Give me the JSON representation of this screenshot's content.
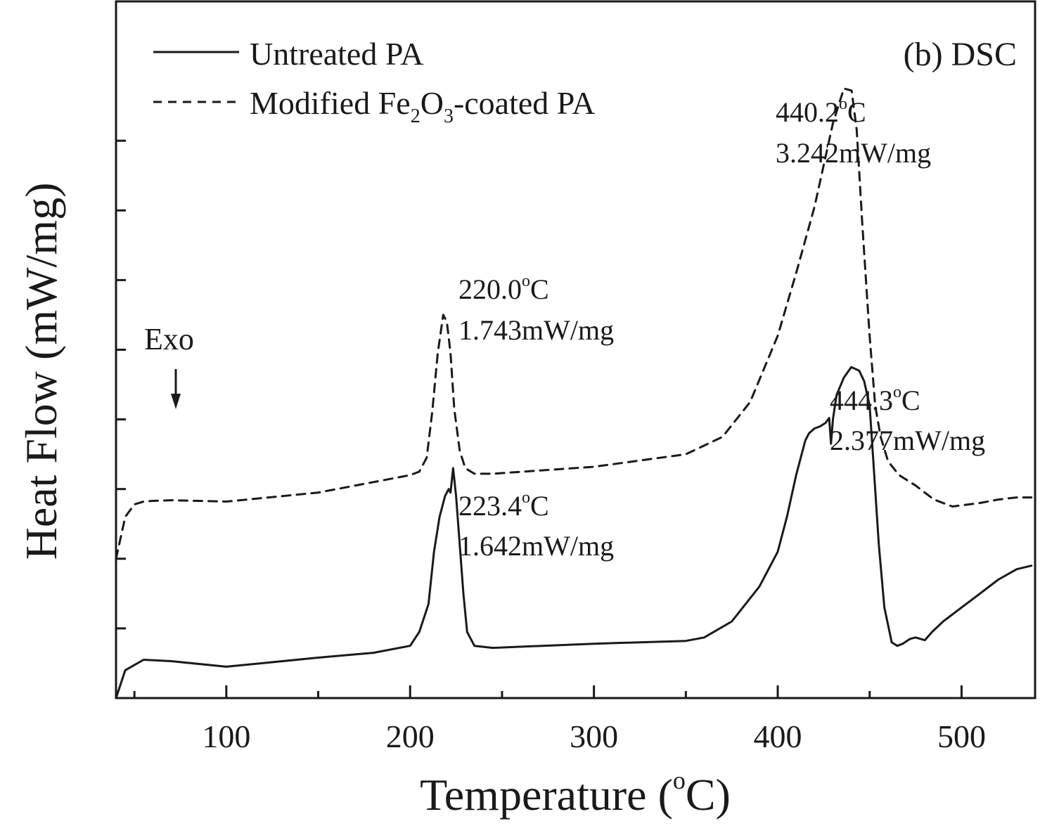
{
  "chart_data": {
    "type": "line",
    "panel_label": "(b) DSC",
    "xlabel": "Temperature (",
    "xlabel_sup": "o",
    "xlabel_tail": "C)",
    "ylabel": "Heat Flow (mW/mg)",
    "xlim": [
      40,
      540
    ],
    "ylim": [
      0,
      10
    ],
    "x_ticks": [
      100,
      200,
      300,
      400,
      500
    ],
    "x_minor_ticks": [
      50,
      150,
      250,
      350,
      450
    ],
    "y_ticks": [
      1,
      2,
      3,
      4,
      5,
      6,
      7,
      8
    ],
    "y_tick_labels_shown": false,
    "grid": false,
    "legend_position": "top-left",
    "exo_label": "Exo",
    "series": [
      {
        "name": "Untreated PA",
        "style": "solid",
        "x": [
          40,
          45,
          55,
          70,
          100,
          150,
          180,
          200,
          205,
          210,
          213,
          216,
          219,
          221,
          222,
          223.4,
          225,
          227,
          229,
          231,
          235,
          245,
          300,
          350,
          360,
          375,
          390,
          400,
          405,
          410,
          415,
          417,
          420,
          423,
          426,
          428,
          429,
          430,
          432,
          436,
          440,
          444.3,
          447,
          450,
          452,
          455,
          458,
          462,
          465,
          468,
          472,
          475,
          480,
          484,
          490,
          500,
          510,
          520,
          530,
          538
        ],
        "y": [
          0.0,
          0.4,
          0.55,
          0.53,
          0.45,
          0.58,
          0.65,
          0.75,
          0.95,
          1.35,
          2.1,
          2.6,
          2.9,
          3.0,
          2.95,
          3.3,
          2.9,
          2.2,
          1.5,
          0.95,
          0.75,
          0.72,
          0.78,
          0.82,
          0.87,
          1.1,
          1.6,
          2.1,
          2.6,
          3.2,
          3.7,
          3.8,
          3.87,
          3.9,
          3.95,
          4.02,
          3.65,
          4.0,
          4.35,
          4.6,
          4.75,
          4.7,
          4.55,
          4.2,
          3.4,
          2.2,
          1.3,
          0.8,
          0.75,
          0.78,
          0.85,
          0.87,
          0.83,
          0.95,
          1.1,
          1.3,
          1.5,
          1.7,
          1.85,
          1.9
        ]
      },
      {
        "name": "Modified Fe2O3-coated PA",
        "name_prefix": "Modified Fe",
        "name_sub1": "2",
        "name_mid": "O",
        "name_sub2": "3",
        "name_suffix": "-coated PA",
        "style": "dashed",
        "x": [
          40,
          45,
          50,
          55,
          60,
          70,
          100,
          150,
          180,
          200,
          205,
          209,
          212,
          215,
          218,
          220.0,
          222,
          224,
          227,
          230,
          235,
          245,
          300,
          350,
          370,
          385,
          400,
          410,
          420,
          430,
          436,
          440.2,
          443,
          446,
          450,
          453,
          456,
          460,
          466,
          475,
          485,
          495,
          510,
          520,
          530,
          538
        ],
        "y": [
          2.0,
          2.6,
          2.78,
          2.82,
          2.83,
          2.84,
          2.82,
          2.95,
          3.1,
          3.2,
          3.25,
          3.45,
          4.1,
          4.95,
          5.5,
          5.4,
          4.95,
          4.15,
          3.55,
          3.3,
          3.22,
          3.22,
          3.32,
          3.5,
          3.75,
          4.25,
          5.2,
          6.1,
          7.05,
          8.25,
          8.75,
          8.72,
          8.15,
          6.8,
          5.2,
          4.2,
          3.75,
          3.4,
          3.2,
          3.05,
          2.85,
          2.75,
          2.8,
          2.85,
          2.88,
          2.88
        ]
      }
    ],
    "annotations": [
      {
        "id": "dashed-peak-1",
        "line1": "220.0",
        "line1_sup": "o",
        "line1_tail": "C",
        "line2": "1.743mW/mg"
      },
      {
        "id": "solid-peak-1",
        "line1": "223.4",
        "line1_sup": "o",
        "line1_tail": "C",
        "line2": "1.642mW/mg"
      },
      {
        "id": "dashed-peak-2",
        "line1": "440.2",
        "line1_sup": "o",
        "line1_tail": "C",
        "line2": "3.242mW/mg"
      },
      {
        "id": "solid-peak-2",
        "line1": "444.3",
        "line1_sup": "o",
        "line1_tail": "C",
        "line2": "2.377mW/mg"
      }
    ]
  }
}
